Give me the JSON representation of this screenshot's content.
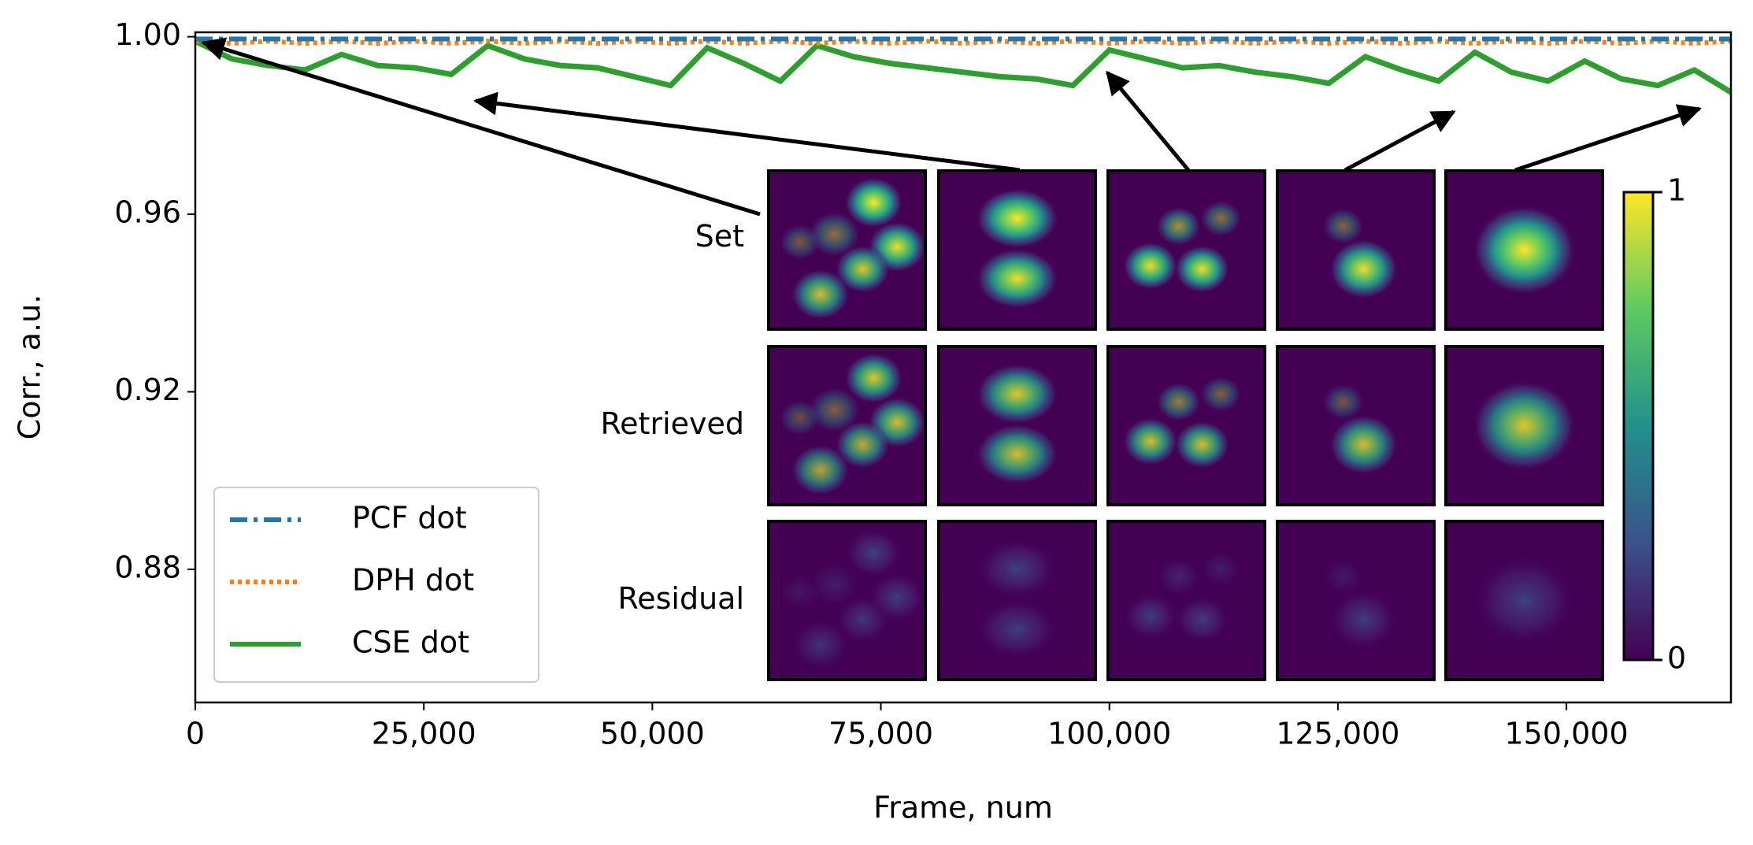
{
  "chart_data": {
    "type": "line",
    "xlabel": "Frame, num",
    "ylabel": "Corr., a.u.",
    "xlim": [
      0,
      168000
    ],
    "ylim": [
      0.85,
      1.001
    ],
    "xticks": [
      0,
      {
        "value": 25000,
        "label": "25,000"
      },
      {
        "value": 50000,
        "label": "50,000"
      },
      {
        "value": 75000,
        "label": "75,000"
      },
      {
        "value": 100000,
        "label": "100,000"
      },
      {
        "value": 125000,
        "label": "125,000"
      },
      {
        "value": 150000,
        "label": "150,000"
      }
    ],
    "yticks": [
      {
        "value": 0.88,
        "label": "0.88"
      },
      {
        "value": 0.92,
        "label": "0.92"
      },
      {
        "value": 0.96,
        "label": "0.96"
      },
      {
        "value": 1.0,
        "label": "1.00"
      }
    ],
    "legend": "lower left",
    "x": [
      0,
      4000,
      8000,
      12000,
      16000,
      20000,
      24000,
      28000,
      32000,
      36000,
      40000,
      44000,
      48000,
      52000,
      56000,
      60000,
      64000,
      68000,
      72000,
      76000,
      80000,
      84000,
      88000,
      92000,
      96000,
      100000,
      104000,
      108000,
      112000,
      116000,
      120000,
      124000,
      128000,
      132000,
      136000,
      140000,
      144000,
      148000,
      152000,
      156000,
      160000,
      164000,
      168000
    ],
    "series": [
      {
        "name": "PCF dot",
        "color": "#1f77b4",
        "style": "dashdot",
        "values": [
          0.9995,
          0.9995,
          0.9995,
          0.9995,
          0.9995,
          0.9995,
          0.9995,
          0.9995,
          0.9995,
          0.9995,
          0.9995,
          0.9995,
          0.9995,
          0.9995,
          0.9995,
          0.9995,
          0.9995,
          0.9995,
          0.9995,
          0.9995,
          0.9995,
          0.9995,
          0.9995,
          0.9995,
          0.9995,
          0.9995,
          0.9995,
          0.9995,
          0.9995,
          0.9995,
          0.9995,
          0.9995,
          0.9995,
          0.9995,
          0.9995,
          0.9995,
          0.9995,
          0.9995,
          0.9995,
          0.9995,
          0.9995,
          0.9995,
          0.9995
        ]
      },
      {
        "name": "DPH dot",
        "color": "#ff7f0e",
        "style": "dotted",
        "values": [
          0.999,
          0.9985,
          0.999,
          0.9985,
          0.999,
          0.9985,
          0.999,
          0.9985,
          0.999,
          0.9985,
          0.999,
          0.9985,
          0.999,
          0.9985,
          0.999,
          0.9985,
          0.999,
          0.9985,
          0.999,
          0.9985,
          0.999,
          0.9985,
          0.999,
          0.9985,
          0.999,
          0.9985,
          0.999,
          0.9985,
          0.999,
          0.9985,
          0.999,
          0.9985,
          0.999,
          0.9985,
          0.999,
          0.9985,
          0.999,
          0.9985,
          0.999,
          0.9985,
          0.999,
          0.9985,
          0.999
        ]
      },
      {
        "name": "CSE dot",
        "color": "#2ca02c",
        "style": "solid",
        "values": [
          0.999,
          0.995,
          0.9935,
          0.9925,
          0.996,
          0.9935,
          0.993,
          0.9915,
          0.998,
          0.995,
          0.9935,
          0.993,
          0.991,
          0.989,
          0.9975,
          0.994,
          0.99,
          0.998,
          0.9955,
          0.994,
          0.993,
          0.992,
          0.991,
          0.9905,
          0.989,
          0.997,
          0.995,
          0.993,
          0.9935,
          0.992,
          0.991,
          0.9895,
          0.9955,
          0.9925,
          0.99,
          0.9965,
          0.992,
          0.99,
          0.9945,
          0.9905,
          0.989,
          0.9925,
          0.9875
        ]
      }
    ],
    "inset_rows": [
      "Set",
      "Retrieved",
      "Residual"
    ],
    "colorbar": {
      "ticks": [
        0,
        1
      ]
    }
  }
}
